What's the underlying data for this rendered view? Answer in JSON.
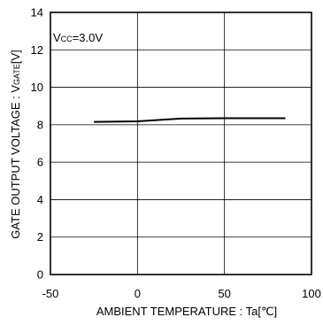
{
  "chart_data": {
    "type": "line",
    "title": "",
    "xlabel": "AMBIENT TEMPERATURE : Ta[℃]",
    "ylabel_parts": {
      "main": "GATE OUTPUT VOLTAGE : V",
      "sub": "GATE",
      "unit": "[V]"
    },
    "annotation": {
      "main": "V",
      "sub": "CC",
      "value": "=3.0V"
    },
    "xlim": [
      -50,
      100
    ],
    "ylim": [
      0,
      14
    ],
    "xticks": [
      -50,
      0,
      50,
      100
    ],
    "yticks": [
      0,
      2,
      4,
      6,
      8,
      10,
      12,
      14
    ],
    "xtick_labels": [
      "-50",
      "0",
      "50",
      "100"
    ],
    "ytick_labels": [
      "0",
      "2",
      "4",
      "6",
      "8",
      "10",
      "12",
      "14"
    ],
    "grid": true,
    "series": [
      {
        "color": "#000000",
        "x": [
          -25,
          0,
          25,
          50,
          85
        ],
        "y": [
          8.15,
          8.18,
          8.33,
          8.35,
          8.35
        ]
      }
    ]
  }
}
